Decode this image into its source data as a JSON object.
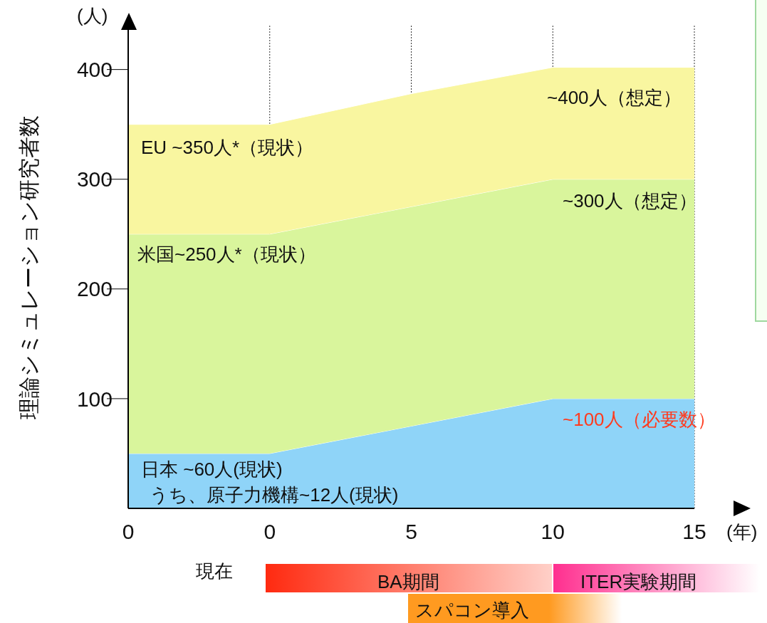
{
  "chart_data": {
    "type": "area",
    "stacked": true,
    "ylabel": "理論シミュレーション研究者数",
    "categories": [
      "0",
      "0",
      "5",
      "10",
      "15"
    ],
    "series": [
      {
        "color": "#8fd4f8",
        "values": [
          50,
          50,
          75,
          100,
          100
        ]
      },
      {
        "color": "#d9f59c",
        "values": [
          200,
          200,
          200,
          200,
          200
        ]
      },
      {
        "color": "#f9f6a0",
        "values": [
          100,
          100,
          103,
          102,
          102
        ]
      }
    ],
    "ylim": [
      0,
      440
    ],
    "yticks": [
      100,
      200,
      300,
      400
    ],
    "grid": "x",
    "annotations": [
      "(人)",
      "(年)",
      "EU  ~350人*（現状）",
      "~400人（想定）",
      "~300人（想定）",
      "米国~250人*（現状）",
      "~100人（必要数）",
      "日本  ~60人(現状)",
      "うち、原子力機構~12人(現状)",
      "現在",
      "BA期間",
      "ITER実験期間",
      "スパコン導入"
    ]
  }
}
